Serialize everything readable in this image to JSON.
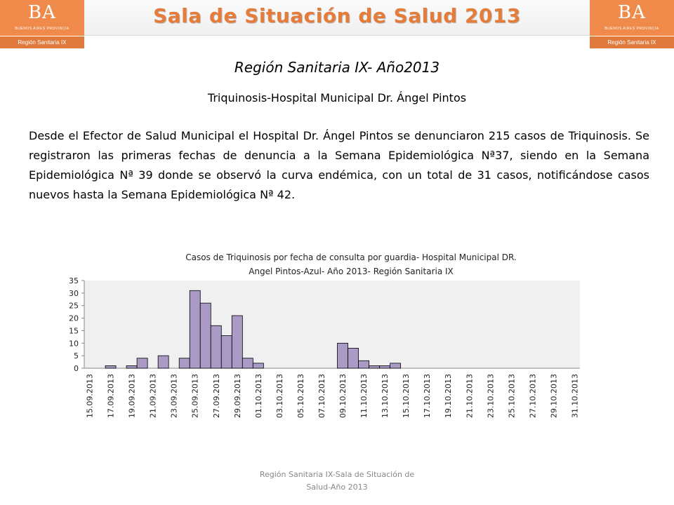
{
  "header": {
    "logo_text": "BA",
    "logo_sub": "BUENOS AIRES PROVINCIA",
    "logo_region": "Región Sanitaria IX",
    "title": "Sala de Situación de Salud 2013"
  },
  "slide": {
    "subtitle": "Región Sanitaria IX- Año2013",
    "subtitle2": "Triquinosis-Hospital Municipal Dr. Ángel Pintos",
    "paragraph": "Desde el Efector de Salud Municipal el Hospital Dr. Ángel Pintos se denunciaron 215 casos de Triquinosis. Se registraron las primeras fechas de denuncia a la Semana Epidemiológica Nª37, siendo en la Semana Epidemiológica Nª 39 donde se observó la curva endémica, con un total de 31 casos, notificándose casos nuevos hasta la Semana Epidemiológica Nª 42.",
    "footer_line1": "Región Sanitaria IX-Sala de Situación de",
    "footer_line2": "Salud-Año 2013"
  },
  "colors": {
    "brand_orange": "#ef8a4a",
    "bar_fill": "#a99bc5",
    "plot_bg": "#f0f0f0"
  },
  "chart_data": {
    "type": "bar",
    "title_line1": "Casos de Triquinosis por fecha de consulta por guardia- Hospital Municipal DR.",
    "title_line2": "Angel Pintos-Azul- Año 2013- Región Sanitaria IX",
    "categories": [
      "15.09.2013",
      "16.09.2013",
      "17.09.2013",
      "18.09.2013",
      "19.09.2013",
      "20.09.2013",
      "21.09.2013",
      "22.09.2013",
      "23.09.2013",
      "24.09.2013",
      "25.09.2013",
      "26.09.2013",
      "27.09.2013",
      "28.09.2013",
      "29.09.2013",
      "30.09.2013",
      "01.10.2013",
      "02.10.2013",
      "03.10.2013",
      "04.10.2013",
      "05.10.2013",
      "06.10.2013",
      "07.10.2013",
      "08.10.2013",
      "09.10.2013",
      "10.10.2013",
      "11.10.2013",
      "12.10.2013",
      "13.10.2013",
      "14.10.2013",
      "15.10.2013",
      "16.10.2013",
      "17.10.2013",
      "18.10.2013",
      "19.10.2013",
      "20.10.2013",
      "21.10.2013",
      "22.10.2013",
      "23.10.2013",
      "24.10.2013",
      "25.10.2013",
      "26.10.2013",
      "27.10.2013",
      "28.10.2013",
      "29.10.2013",
      "30.10.2013",
      "31.10.2013"
    ],
    "tick_labels": [
      "15.09.2013",
      "17.09.2013",
      "19.09.2013",
      "21.09.2013",
      "23.09.2013",
      "25.09.2013",
      "27.09.2013",
      "29.09.2013",
      "01.10.2013",
      "03.10.2013",
      "05.10.2013",
      "07.10.2013",
      "09.10.2013",
      "11.10.2013",
      "13.10.2013",
      "15.10.2013",
      "17.10.2013",
      "19.10.2013",
      "21.10.2013",
      "23.10.2013",
      "25.10.2013",
      "27.10.2013",
      "29.10.2013",
      "31.10.2013"
    ],
    "values": [
      0,
      0,
      1,
      0,
      1,
      4,
      0,
      5,
      0,
      4,
      31,
      26,
      17,
      13,
      21,
      4,
      2,
      0,
      0,
      0,
      0,
      0,
      0,
      0,
      10,
      8,
      3,
      1,
      1,
      2,
      0,
      0,
      0,
      0,
      0,
      0,
      0,
      0,
      0,
      0,
      0,
      0,
      0,
      0,
      0,
      0,
      0
    ],
    "ylim": [
      0,
      35
    ],
    "yticks": [
      0,
      5,
      10,
      15,
      20,
      25,
      30,
      35
    ],
    "grid": false
  }
}
